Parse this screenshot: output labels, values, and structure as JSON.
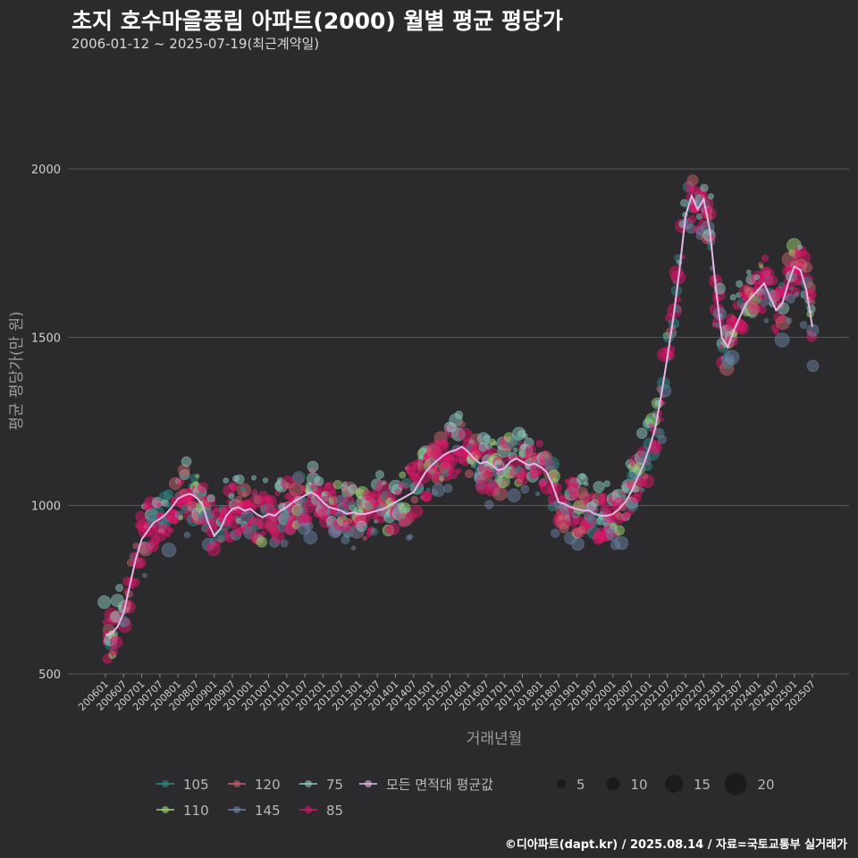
{
  "header": {
    "title": "초지 호수마을풍림 아파트(2000) 월별 평균 평당가",
    "subtitle": "2006-01-12 ~ 2025-07-19(최근계약일)"
  },
  "footer": {
    "credit": "©디아파트(dapt.kr) / 2025.08.14 / 자료=국토교통부 실거래가"
  },
  "chart_data": {
    "type": "scatter",
    "xlabel": "거래년월",
    "ylabel": "평균 평당가(만 원)",
    "ylim": [
      500,
      2000
    ],
    "yticks": [
      500,
      1000,
      1500,
      2000
    ],
    "ytick_labels": [
      "500",
      "1000",
      "1500",
      "2000"
    ],
    "x_range": [
      "2006-01",
      "2025-07"
    ],
    "xtick_labels": [
      "200601",
      "200607",
      "200701",
      "200707",
      "200801",
      "200807",
      "200901",
      "200907",
      "201001",
      "201007",
      "201101",
      "201107",
      "201201",
      "201207",
      "201301",
      "201307",
      "201401",
      "201407",
      "201501",
      "201507",
      "201601",
      "201607",
      "201701",
      "201707",
      "201801",
      "201807",
      "201901",
      "201907",
      "202001",
      "202007",
      "202101",
      "202107",
      "202201",
      "202207",
      "202301",
      "202307",
      "202401",
      "202407",
      "202501",
      "202507"
    ],
    "grid": "horizontal",
    "legend_position": "bottom",
    "series": [
      {
        "name": "105",
        "color": "#2e8a88"
      },
      {
        "name": "110",
        "color": "#9ed676"
      },
      {
        "name": "120",
        "color": "#c9606a"
      },
      {
        "name": "145",
        "color": "#6b84a3"
      },
      {
        "name": "75",
        "color": "#8fcac2"
      },
      {
        "name": "85",
        "color": "#e0156a"
      }
    ],
    "average_series": {
      "name": "모든 면적대 평균값",
      "color": "#e7b7e8",
      "points": [
        [
          "2006-01",
          615
        ],
        [
          "2006-03",
          620
        ],
        [
          "2006-05",
          640
        ],
        [
          "2006-07",
          680
        ],
        [
          "2006-09",
          760
        ],
        [
          "2006-11",
          840
        ],
        [
          "2007-01",
          900
        ],
        [
          "2007-03",
          925
        ],
        [
          "2007-05",
          950
        ],
        [
          "2007-07",
          960
        ],
        [
          "2007-09",
          975
        ],
        [
          "2007-11",
          995
        ],
        [
          "2008-01",
          1020
        ],
        [
          "2008-03",
          1030
        ],
        [
          "2008-05",
          1035
        ],
        [
          "2008-07",
          1025
        ],
        [
          "2008-09",
          1005
        ],
        [
          "2008-11",
          950
        ],
        [
          "2009-01",
          910
        ],
        [
          "2009-03",
          930
        ],
        [
          "2009-05",
          970
        ],
        [
          "2009-07",
          990
        ],
        [
          "2009-09",
          995
        ],
        [
          "2009-11",
          985
        ],
        [
          "2010-01",
          990
        ],
        [
          "2010-03",
          975
        ],
        [
          "2010-05",
          965
        ],
        [
          "2010-07",
          975
        ],
        [
          "2010-09",
          970
        ],
        [
          "2010-11",
          985
        ],
        [
          "2011-01",
          995
        ],
        [
          "2011-03",
          1010
        ],
        [
          "2011-05",
          1020
        ],
        [
          "2011-07",
          1030
        ],
        [
          "2011-09",
          1040
        ],
        [
          "2011-11",
          1030
        ],
        [
          "2012-01",
          1010
        ],
        [
          "2012-03",
          995
        ],
        [
          "2012-05",
          990
        ],
        [
          "2012-07",
          985
        ],
        [
          "2012-09",
          975
        ],
        [
          "2012-11",
          980
        ],
        [
          "2013-01",
          975
        ],
        [
          "2013-03",
          975
        ],
        [
          "2013-05",
          980
        ],
        [
          "2013-07",
          985
        ],
        [
          "2013-09",
          990
        ],
        [
          "2013-11",
          1000
        ],
        [
          "2014-01",
          1010
        ],
        [
          "2014-03",
          1020
        ],
        [
          "2014-05",
          1030
        ],
        [
          "2014-07",
          1040
        ],
        [
          "2014-09",
          1070
        ],
        [
          "2014-11",
          1100
        ],
        [
          "2015-01",
          1120
        ],
        [
          "2015-03",
          1135
        ],
        [
          "2015-05",
          1150
        ],
        [
          "2015-07",
          1160
        ],
        [
          "2015-09",
          1165
        ],
        [
          "2015-11",
          1175
        ],
        [
          "2016-01",
          1160
        ],
        [
          "2016-03",
          1140
        ],
        [
          "2016-05",
          1125
        ],
        [
          "2016-07",
          1130
        ],
        [
          "2016-09",
          1120
        ],
        [
          "2016-11",
          1105
        ],
        [
          "2017-01",
          1110
        ],
        [
          "2017-03",
          1130
        ],
        [
          "2017-05",
          1140
        ],
        [
          "2017-07",
          1130
        ],
        [
          "2017-09",
          1120
        ],
        [
          "2017-11",
          1125
        ],
        [
          "2018-01",
          1115
        ],
        [
          "2018-03",
          1100
        ],
        [
          "2018-05",
          1060
        ],
        [
          "2018-07",
          1010
        ],
        [
          "2018-09",
          1005
        ],
        [
          "2018-11",
          995
        ],
        [
          "2019-01",
          990
        ],
        [
          "2019-03",
          985
        ],
        [
          "2019-05",
          985
        ],
        [
          "2019-07",
          975
        ],
        [
          "2019-09",
          970
        ],
        [
          "2019-11",
          970
        ],
        [
          "2020-01",
          975
        ],
        [
          "2020-03",
          990
        ],
        [
          "2020-05",
          1010
        ],
        [
          "2020-07",
          1040
        ],
        [
          "2020-09",
          1080
        ],
        [
          "2020-11",
          1120
        ],
        [
          "2021-01",
          1170
        ],
        [
          "2021-03",
          1230
        ],
        [
          "2021-05",
          1330
        ],
        [
          "2021-07",
          1440
        ],
        [
          "2021-09",
          1560
        ],
        [
          "2021-11",
          1700
        ],
        [
          "2022-01",
          1860
        ],
        [
          "2022-03",
          1920
        ],
        [
          "2022-05",
          1880
        ],
        [
          "2022-07",
          1910
        ],
        [
          "2022-09",
          1820
        ],
        [
          "2022-11",
          1650
        ],
        [
          "2023-01",
          1500
        ],
        [
          "2023-03",
          1470
        ],
        [
          "2023-05",
          1520
        ],
        [
          "2023-07",
          1560
        ],
        [
          "2023-09",
          1600
        ],
        [
          "2023-11",
          1620
        ],
        [
          "2024-01",
          1640
        ],
        [
          "2024-03",
          1660
        ],
        [
          "2024-05",
          1620
        ],
        [
          "2024-07",
          1580
        ],
        [
          "2024-09",
          1600
        ],
        [
          "2024-11",
          1660
        ],
        [
          "2025-01",
          1710
        ],
        [
          "2025-03",
          1700
        ],
        [
          "2025-05",
          1640
        ],
        [
          "2025-07",
          1530
        ]
      ]
    },
    "size_legend": {
      "values": [
        5,
        10,
        15,
        20
      ]
    }
  }
}
